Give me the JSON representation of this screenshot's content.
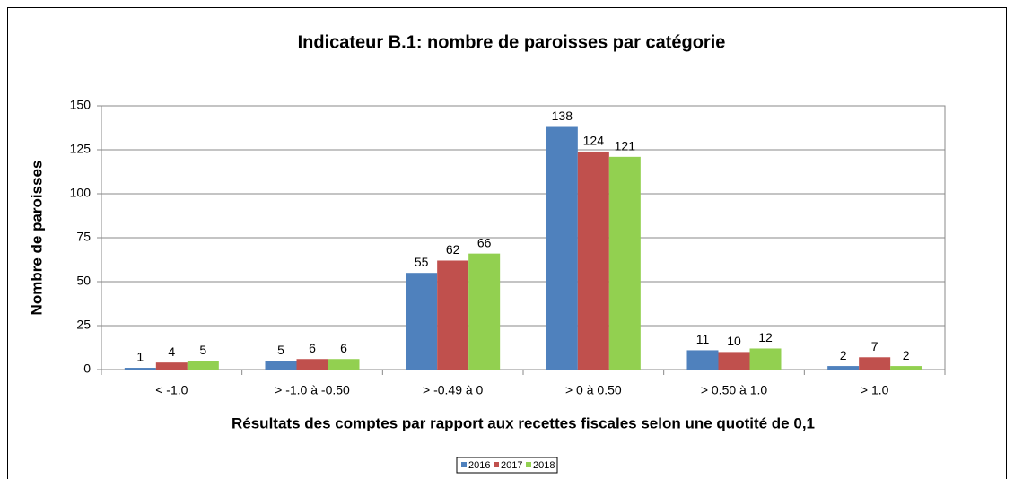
{
  "chart_data": {
    "type": "bar",
    "title": "Indicateur B.1: nombre de paroisses par catégorie",
    "ylabel": "Nombre de paroisses",
    "xlabel": "Résultats des comptes par rapport aux recettes fiscales selon une quotité de 0,1",
    "categories": [
      "< -1.0",
      "> -1.0 à -0.50",
      "> -0.49 à 0",
      "> 0 à 0.50",
      "> 0.50 à 1.0",
      "> 1.0"
    ],
    "series": [
      {
        "name": "2016",
        "color": "#4f81bd",
        "values": [
          1,
          5,
          55,
          138,
          11,
          2
        ]
      },
      {
        "name": "2017",
        "color": "#c0504d",
        "values": [
          4,
          6,
          62,
          124,
          10,
          7
        ]
      },
      {
        "name": "2018",
        "color": "#92d050",
        "values": [
          5,
          6,
          66,
          121,
          12,
          2
        ]
      }
    ],
    "ylim": [
      0,
      150
    ],
    "yticks": [
      0,
      25,
      50,
      75,
      100,
      125,
      150
    ],
    "grid": true,
    "legend": "bottom"
  }
}
